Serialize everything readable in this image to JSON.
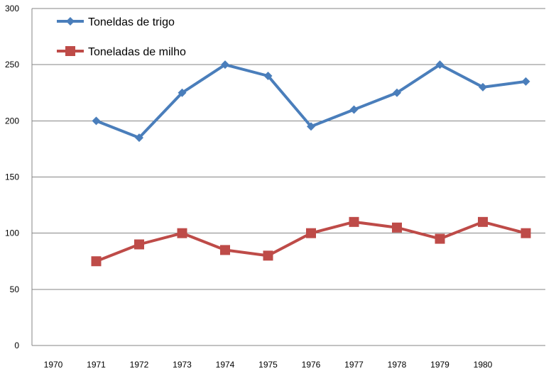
{
  "chart_data": {
    "type": "line",
    "categories": [
      "1970",
      "1971",
      "1972",
      "1973",
      "1974",
      "1975",
      "1976",
      "1977",
      "1978",
      "1979",
      "1980"
    ],
    "series": [
      {
        "name": "Toneldas de trigo",
        "color": "#4a7ebb",
        "marker": "diamond",
        "values": [
          200,
          185,
          225,
          250,
          240,
          195,
          210,
          225,
          250,
          230,
          235
        ]
      },
      {
        "name": "Toneladas de milho",
        "color": "#be4b48",
        "marker": "square",
        "values": [
          75,
          90,
          100,
          85,
          80,
          100,
          110,
          105,
          95,
          110,
          100
        ]
      }
    ],
    "yticks": [
      "0",
      "50",
      "100",
      "150",
      "200",
      "250",
      "300"
    ],
    "ylim": [
      0,
      300
    ],
    "grid": "horizontal",
    "legend_position": "top-left",
    "title": "",
    "xlabel": "",
    "ylabel": ""
  }
}
